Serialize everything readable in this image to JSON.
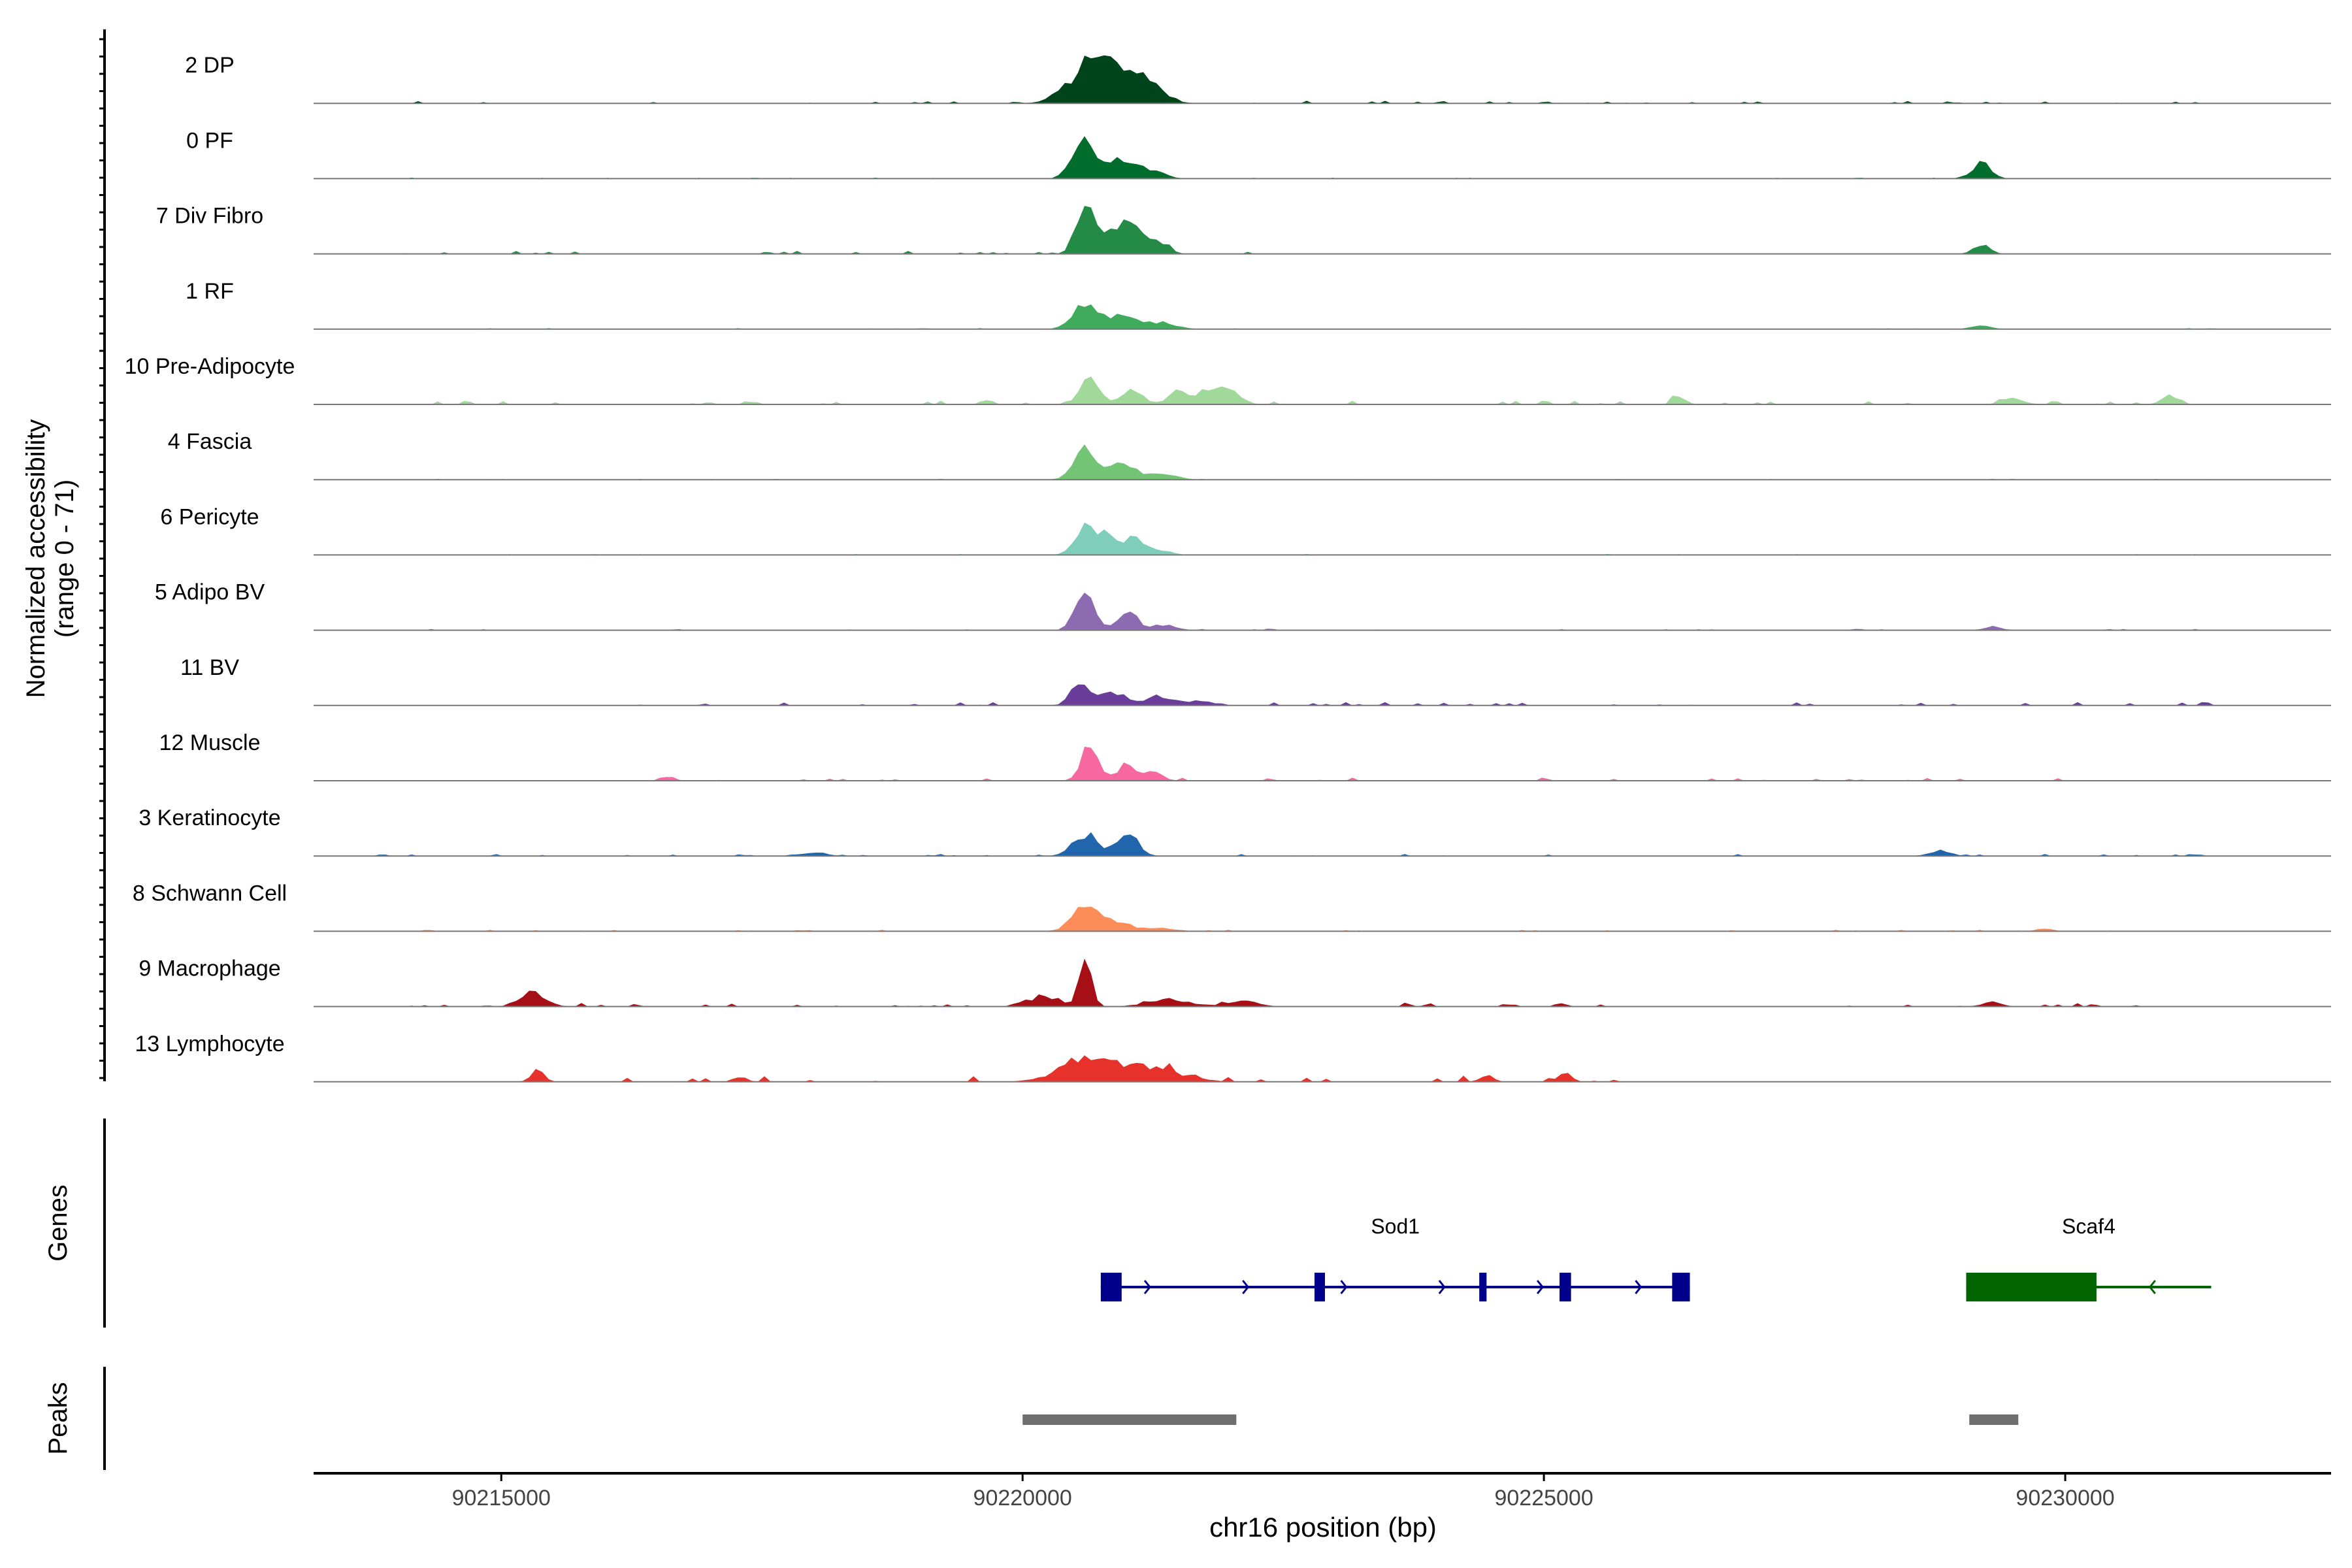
{
  "chart_data": {
    "type": "area",
    "title": "",
    "chromosome": "chr16",
    "xlabel": "chr16 position (bp)",
    "ylabel_line1": "Normalized accessibility",
    "ylabel_line2": "(range 0 - 71)",
    "xlim": [
      90213200,
      90232550
    ],
    "ylim": [
      0,
      71
    ],
    "x_ticks": [
      {
        "value": 90215000,
        "label": "90215000"
      },
      {
        "value": 90220000,
        "label": "90220000"
      },
      {
        "value": 90225000,
        "label": "90225000"
      },
      {
        "value": 90230000,
        "label": "90230000"
      }
    ],
    "tracks": [
      {
        "name": "2 DP",
        "color": "#00441B",
        "peaks": [
          [
            90220700,
            0.9,
            140
          ],
          [
            90220950,
            0.5,
            130
          ],
          [
            90221200,
            0.45,
            150
          ],
          [
            90220450,
            0.3,
            150
          ]
        ],
        "noise": [
          [
            90213800,
            90231500,
            0.05
          ]
        ]
      },
      {
        "name": "0 PF",
        "color": "#006D2C",
        "peaks": [
          [
            90220600,
            0.85,
            110
          ],
          [
            90220950,
            0.4,
            110
          ],
          [
            90221200,
            0.2,
            140
          ],
          [
            90229200,
            0.35,
            90
          ]
        ],
        "noise": [
          [
            90213800,
            90231500,
            0.02
          ]
        ]
      },
      {
        "name": "7 Div Fibro",
        "color": "#238B45",
        "peaks": [
          [
            90220600,
            0.95,
            90
          ],
          [
            90220850,
            0.55,
            110
          ],
          [
            90221050,
            0.6,
            90
          ],
          [
            90221300,
            0.3,
            90
          ],
          [
            90229200,
            0.2,
            80
          ]
        ],
        "noise": [
          [
            90213800,
            90222200,
            0.06
          ]
        ]
      },
      {
        "name": "1 RF",
        "color": "#41AB5D",
        "peaks": [
          [
            90220600,
            0.6,
            120
          ],
          [
            90220950,
            0.3,
            110
          ],
          [
            90221300,
            0.15,
            150
          ],
          [
            90229200,
            0.08,
            90
          ]
        ],
        "noise": [
          [
            90213800,
            90231500,
            0.02
          ]
        ]
      },
      {
        "name": "10 Pre-Adipocyte",
        "color": "#A1D99B",
        "peaks": [
          [
            90220650,
            0.6,
            90
          ],
          [
            90221050,
            0.35,
            100
          ],
          [
            90221500,
            0.3,
            100
          ],
          [
            90221800,
            0.3,
            100
          ],
          [
            90222000,
            0.25,
            100
          ],
          [
            90226300,
            0.18,
            60
          ],
          [
            90231000,
            0.22,
            70
          ],
          [
            90229500,
            0.15,
            100
          ]
        ],
        "noise": [
          [
            90213800,
            90231500,
            0.08
          ]
        ]
      },
      {
        "name": "4 Fascia",
        "color": "#74C476",
        "peaks": [
          [
            90220600,
            0.65,
            110
          ],
          [
            90220950,
            0.35,
            110
          ],
          [
            90221300,
            0.15,
            150
          ]
        ],
        "noise": [
          [
            90213800,
            90231500,
            0.02
          ]
        ]
      },
      {
        "name": "6 Pericyte",
        "color": "#7FCDBB",
        "peaks": [
          [
            90220600,
            0.6,
            100
          ],
          [
            90220800,
            0.4,
            80
          ],
          [
            90221050,
            0.35,
            100
          ],
          [
            90221300,
            0.1,
            120
          ]
        ],
        "noise": [
          [
            90213800,
            90231500,
            0.02
          ]
        ]
      },
      {
        "name": "5 Adipo BV",
        "color": "#8C6BB1",
        "peaks": [
          [
            90220600,
            0.85,
            90
          ],
          [
            90221000,
            0.45,
            90
          ],
          [
            90221350,
            0.12,
            120
          ],
          [
            90229300,
            0.07,
            90
          ]
        ],
        "noise": [
          [
            90213800,
            90231500,
            0.03
          ]
        ]
      },
      {
        "name": "11 BV",
        "color": "#6A3D9A",
        "peaks": [
          [
            90220550,
            0.45,
            90
          ],
          [
            90220850,
            0.3,
            110
          ],
          [
            90221300,
            0.18,
            150
          ],
          [
            90221700,
            0.1,
            120
          ]
        ],
        "noise": [
          [
            90215500,
            90231500,
            0.07
          ]
        ]
      },
      {
        "name": "12 Muscle",
        "color": "#F768A1",
        "peaks": [
          [
            90220650,
            0.85,
            80
          ],
          [
            90221000,
            0.45,
            70
          ],
          [
            90221250,
            0.2,
            90
          ],
          [
            90216600,
            0.1,
            60
          ]
        ],
        "noise": [
          [
            90216400,
            90230200,
            0.07
          ]
        ]
      },
      {
        "name": "3 Keratinocyte",
        "color": "#2166AC",
        "peaks": [
          [
            90220600,
            0.45,
            120
          ],
          [
            90221000,
            0.5,
            100
          ],
          [
            90218000,
            0.08,
            120
          ],
          [
            90228800,
            0.12,
            100
          ]
        ],
        "noise": [
          [
            90213800,
            90231500,
            0.04
          ]
        ]
      },
      {
        "name": "8 Schwann Cell",
        "color": "#FC8D59",
        "peaks": [
          [
            90220600,
            0.6,
            120
          ],
          [
            90220900,
            0.2,
            130
          ],
          [
            90221300,
            0.08,
            150
          ],
          [
            90229800,
            0.06,
            80
          ]
        ],
        "noise": [
          [
            90213800,
            90231500,
            0.03
          ]
        ]
      },
      {
        "name": "9 Macrophage",
        "color": "#A50F15",
        "peaks": [
          [
            90220600,
            1.0,
            60
          ],
          [
            90215300,
            0.3,
            120
          ],
          [
            90220100,
            0.15,
            120
          ],
          [
            90220300,
            0.15,
            100
          ],
          [
            90221400,
            0.15,
            200
          ],
          [
            90222100,
            0.12,
            150
          ],
          [
            90229300,
            0.12,
            80
          ]
        ],
        "noise": [
          [
            90213800,
            90231500,
            0.08
          ]
        ]
      },
      {
        "name": "13 Lymphocyte",
        "color": "#E6322A",
        "peaks": [
          [
            90215350,
            0.3,
            60
          ],
          [
            90220600,
            0.45,
            250
          ],
          [
            90221200,
            0.3,
            300
          ],
          [
            90225200,
            0.2,
            60
          ],
          [
            90224450,
            0.15,
            60
          ],
          [
            90217300,
            0.1,
            60
          ]
        ],
        "noise": [
          [
            90215300,
            90225800,
            0.12
          ]
        ]
      }
    ],
    "genes_label": "Genes",
    "genes": [
      {
        "name": "Sod1",
        "color": "#00008B",
        "strand": "+",
        "start": 90220750,
        "end": 90226400,
        "exons": [
          [
            90220750,
            90220950
          ],
          [
            90222800,
            90222900
          ],
          [
            90224380,
            90224450
          ],
          [
            90225150,
            90225260
          ],
          [
            90226230,
            90226400
          ]
        ]
      },
      {
        "name": "Scaf4",
        "color": "#006400",
        "strand": "-",
        "start": 90229050,
        "end": 90231400,
        "exons": [
          [
            90229050,
            90230300
          ]
        ]
      }
    ],
    "peaks_label": "Peaks",
    "peak_regions": [
      [
        90220000,
        90222050
      ],
      [
        90229080,
        90229550
      ]
    ]
  }
}
